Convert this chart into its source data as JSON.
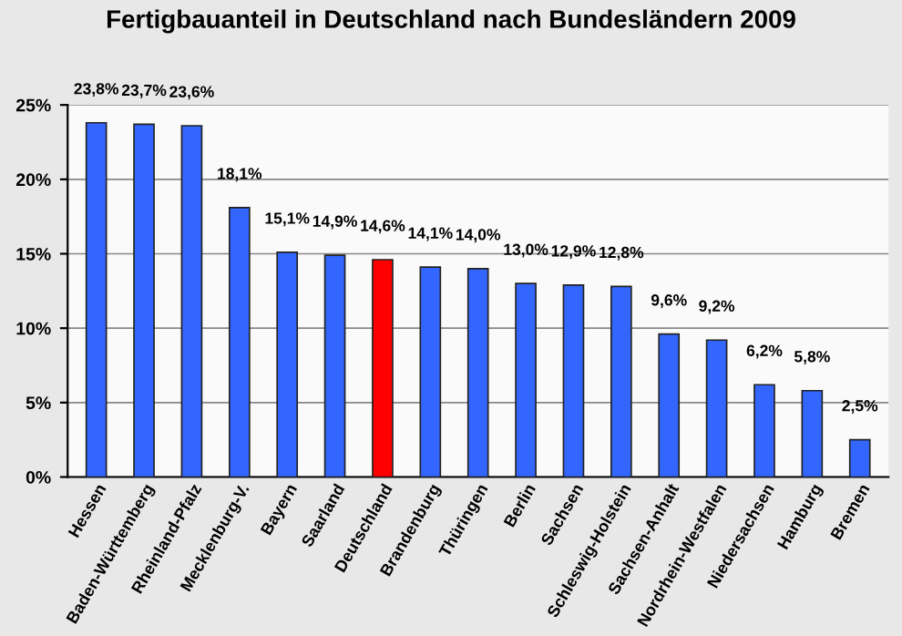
{
  "chart_data": {
    "type": "bar",
    "title": "Fertigbauanteil in Deutschland nach Bundesländern 2009",
    "categories": [
      "Hessen",
      "Baden-Württemberg",
      "Rheinland-Pfalz",
      "Mecklenburg-V.",
      "Bayern",
      "Saarland",
      "Deutschland",
      "Brandenburg",
      "Thüringen",
      "Berlin",
      "Sachsen",
      "Schleswig-Holstein",
      "Sachsen-Anhalt",
      "Nordrhein-Westfalen",
      "Niedersachsen",
      "Hamburg",
      "Bremen"
    ],
    "values": [
      23.8,
      23.7,
      23.6,
      18.1,
      15.1,
      14.9,
      14.6,
      14.1,
      14.0,
      13.0,
      12.9,
      12.8,
      9.6,
      9.2,
      6.2,
      5.8,
      2.5
    ],
    "colors": [
      "#3366ff",
      "#3366ff",
      "#3366ff",
      "#3366ff",
      "#3366ff",
      "#3366ff",
      "#ff0000",
      "#3366ff",
      "#3366ff",
      "#3366ff",
      "#3366ff",
      "#3366ff",
      "#3366ff",
      "#3366ff",
      "#3366ff",
      "#3366ff",
      "#3366ff"
    ],
    "value_labels": [
      "23,8%",
      "23,7%",
      "23,6%",
      "18,1%",
      "15,1%",
      "14,9%",
      "14,6%",
      "14,1%",
      "14,0%",
      "13,0%",
      "12,9%",
      "12,8%",
      "9,6%",
      "9,2%",
      "6,2%",
      "5,8%",
      "2,5%"
    ],
    "ylim": [
      0,
      25
    ],
    "yticks": [
      {
        "value": 0,
        "label": "0%"
      },
      {
        "value": 5,
        "label": "5%"
      },
      {
        "value": 10,
        "label": "10%"
      },
      {
        "value": 15,
        "label": "15%"
      },
      {
        "value": 20,
        "label": "20%"
      },
      {
        "value": 25,
        "label": "25%"
      }
    ],
    "grid": "y",
    "legend": false
  }
}
